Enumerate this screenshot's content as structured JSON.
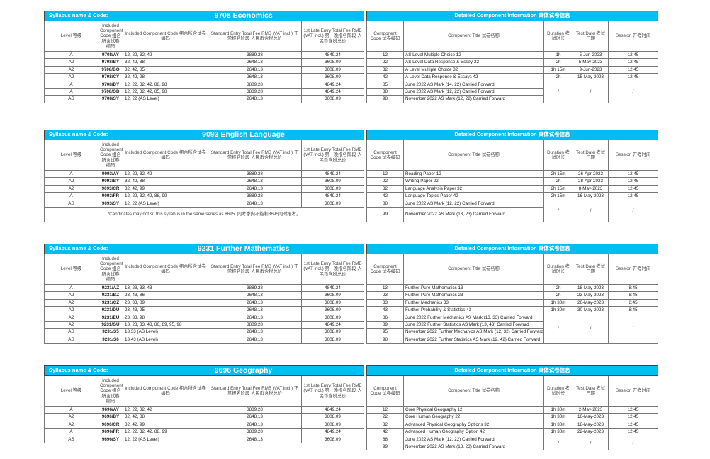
{
  "labels": {
    "syllabus": "Syllabus name & Code:",
    "detail": "Detailed Component Information 具体试卷信息",
    "level": "Level 等级",
    "incl_short": "Included Component Code 组合所含试卷编码",
    "incl": "Included Component Code 组合所含试卷编码",
    "std": "Standard Entry Total Fee RMB (VAT incl.) 正常报名阶段 人民币含税总价",
    "late": "1st Late Entry Total Fee RMB (VAT incl.) 第一晚报名阶段 人民币含税总价",
    "comp_code": "Component Code 试卷编码",
    "comp_title": "Component Title 试卷名称",
    "duration": "Duration 考试时长",
    "date": "Test Date 考试日期",
    "session": "Session 开考时间"
  },
  "colors": {
    "header": "#00bdf2"
  },
  "syllabi": [
    {
      "title": "9708 Economics",
      "options": [
        [
          "A",
          "9708/AY",
          "12, 22, 32, 42",
          "3889.28",
          "4849.24"
        ],
        [
          "A2",
          "9708/BY",
          "32, 42, 88",
          "2648.13",
          "3608.09"
        ],
        [
          "A2",
          "9708/BO",
          "32, 42, 85",
          "2648.13",
          "3608.09"
        ],
        [
          "A2",
          "9708/CY",
          "32, 42, 98",
          "2648.13",
          "3608.09"
        ],
        [
          "A",
          "9708/DY",
          "12, 22, 32, 42, 88, 98",
          "3889.28",
          "4849.24"
        ],
        [
          "A",
          "9708/OD",
          "12, 22, 32, 42, 85, 98",
          "3889.28",
          "4849.24"
        ],
        [
          "AS",
          "9708/SY",
          "12, 22 (AS Level)",
          "2648.13",
          "3608.09"
        ]
      ],
      "note": null,
      "components": [
        [
          "12",
          "AS Level Multiple Choice 12",
          "1h",
          "5-Jun-2023",
          "12:45"
        ],
        [
          "22",
          "AS Level Data Response & Essay 22",
          "2h",
          "5-May-2023",
          "12:45"
        ],
        [
          "32",
          "A Level Multiple Choice 32",
          "1h 15m",
          "9-Jun-2023",
          "12:45"
        ],
        [
          "42",
          "A Level Data Response & Essays 42",
          "2h",
          "15-May-2023",
          "12:45"
        ],
        [
          "85",
          "June 2022 AS Mark (14, 22) Carried Forward",
          "/",
          "/",
          "/"
        ],
        [
          "88",
          "June 2022 AS Mark (12, 22) Carried Forward",
          "/",
          "/",
          "/"
        ],
        [
          "98",
          "November 2022 AS Mark (12, 22) Carried Forward",
          "/",
          "/",
          "/"
        ]
      ]
    },
    {
      "title": "9093 English Language",
      "options": [
        [
          "A",
          "9093/AY",
          "12, 22, 32, 42",
          "3889.28",
          "4849.24"
        ],
        [
          "A2",
          "9093/BY",
          "32, 42, 88",
          "2648.13",
          "3608.09"
        ],
        [
          "A2",
          "9093/CR",
          "32, 42, 99",
          "2648.13",
          "3608.09"
        ],
        [
          "A",
          "9093/FR",
          "12, 22, 32, 42, 88, 99",
          "3889.28",
          "4849.24"
        ],
        [
          "AS",
          "9093/SY",
          "12, 22 (AS Level)",
          "2648.13",
          "3608.09"
        ]
      ],
      "note": "*Candidates may not sit this syllabus in the same series as 8695. 同考季内不能和8695同时报考。",
      "components": [
        [
          "12",
          "Reading Paper 12",
          "2h 15m",
          "26-Apr-2023",
          "12:45"
        ],
        [
          "22",
          "Writing Paper 22",
          "2h",
          "28-Apr-2023",
          "12:45"
        ],
        [
          "32",
          "Language Analysis Paper 32",
          "2h 15m",
          "8-May-2023",
          "12:45"
        ],
        [
          "42",
          "Language Topics Paper 42",
          "2h 15m",
          "16-May-2023",
          "12:45"
        ],
        [
          "88",
          "June 2022 AS Mark (12, 22) Carried Forward",
          "/",
          "/",
          "/"
        ],
        [
          "99",
          "November 2022 AS Mark (13, 23) Carried Forward",
          "/",
          "/",
          "/"
        ]
      ]
    },
    {
      "title": "9231 Further Mathematics",
      "options": [
        [
          "A",
          "9231/AZ",
          "13, 23, 33, 43",
          "3889.28",
          "4849.24"
        ],
        [
          "A2",
          "9231/BZ",
          "23, 43, 86",
          "2648.13",
          "3608.09"
        ],
        [
          "A2",
          "9231/CZ",
          "23, 33, 89",
          "2648.13",
          "3608.09"
        ],
        [
          "A2",
          "9231/DU",
          "23, 43, 95",
          "2648.13",
          "3608.09"
        ],
        [
          "A2",
          "9231/EU",
          "23, 33, 98",
          "2648.13",
          "3608.09"
        ],
        [
          "A2",
          "9231/GU",
          "13, 23, 33, 43, 86, 89, 95, 98",
          "3889.28",
          "4849.24"
        ],
        [
          "AS",
          "9231/S5",
          "13,33 (AS Level)",
          "2648.13",
          "3608.09"
        ],
        [
          "AS",
          "9231/S6",
          "13,43 (AS Level)",
          "2648.13",
          "3608.09"
        ]
      ],
      "note": null,
      "components": [
        [
          "13",
          "Further Pure Mathematics 13",
          "2h",
          "18-May-2023",
          "8:45"
        ],
        [
          "23",
          "Further Pure Mathematics 23",
          "2h",
          "23-May-2023",
          "8:45"
        ],
        [
          "33",
          "Further Mechanics 33",
          "1h 30m",
          "26-May-2023",
          "8:45"
        ],
        [
          "43",
          "Further Probability & Statistics 43",
          "1h 30m",
          "30-May-2023",
          "8:45"
        ],
        [
          "86",
          "June 2022 Further Mechanics AS Mark (13, 33) Carried Forward",
          "/",
          "/",
          "/"
        ],
        [
          "89",
          "June 2022 Further Statistics AS Mark (13, 43) Carried Forward",
          "/",
          "/",
          "/"
        ],
        [
          "95",
          "November 2022 Further Mechanics AS Mark (12, 32) Carried Forward",
          "/",
          "/",
          "/"
        ],
        [
          "98",
          "November 2022 Further Statistics AS Mark (12, 42) Carried Forward",
          "/",
          "/",
          "/"
        ]
      ]
    },
    {
      "title": "9696 Geography",
      "options": [
        [
          "A",
          "9696/AY",
          "12, 22, 32, 42",
          "3889.28",
          "4849.24"
        ],
        [
          "A2",
          "9696/BY",
          "32, 42, 88",
          "2648.13",
          "3608.09"
        ],
        [
          "A2",
          "9696/CR",
          "32, 42, 99",
          "2648.13",
          "3608.09"
        ],
        [
          "A",
          "9696/FR",
          "12, 22, 32, 42, 88, 99",
          "3889.28",
          "4849.24"
        ],
        [
          "AS",
          "9696/SY",
          "12, 22 (AS Level)",
          "2648.13",
          "3608.09"
        ]
      ],
      "note": null,
      "components": [
        [
          "12",
          "Core Physical Geography 12",
          "1h 30m",
          "2-May-2023",
          "12:45"
        ],
        [
          "22",
          "Core Human Geography 22",
          "1h 30m",
          "16-May-2023",
          "12:45"
        ],
        [
          "32",
          "Advanced Physical Geography Options 32",
          "1h 30m",
          "18-May-2023",
          "12:45"
        ],
        [
          "42",
          "Advanced Human Geography Option 42",
          "1h 30m",
          "22-May-2023",
          "12:45"
        ],
        [
          "88",
          "June 2022 AS Mark (12, 22) Carried Forward",
          "/",
          "/",
          "/"
        ],
        [
          "99",
          "November 2022 AS Mark (13, 23) Carried Forward",
          "/",
          "/",
          "/"
        ]
      ]
    }
  ]
}
